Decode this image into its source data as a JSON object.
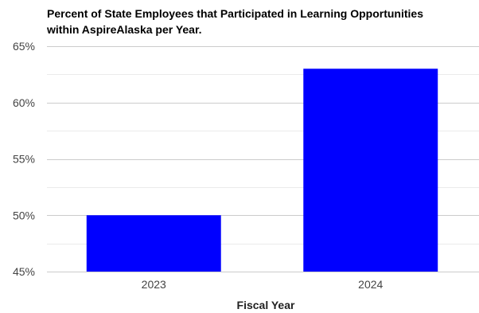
{
  "chart_data": {
    "type": "bar",
    "title_lines": [
      "Percent of State Employees that Participated in Learning Opportunities",
      "within AspireAlaska per Year."
    ],
    "xlabel": "Fiscal Year",
    "ylabel": "",
    "categories": [
      "2023",
      "2024"
    ],
    "values": [
      50,
      63
    ],
    "ylim": [
      45,
      65
    ],
    "y_ticks": [
      45,
      50,
      55,
      60,
      65
    ],
    "y_tick_labels": [
      "45%",
      "50%",
      "55%",
      "60%",
      "65%"
    ],
    "minor_grid_step": 2.5,
    "grid": true,
    "legend": "none",
    "bar_color": "#0000ff",
    "gridline_color": "#cccccc",
    "minor_gridline_color": "#ebebeb"
  }
}
